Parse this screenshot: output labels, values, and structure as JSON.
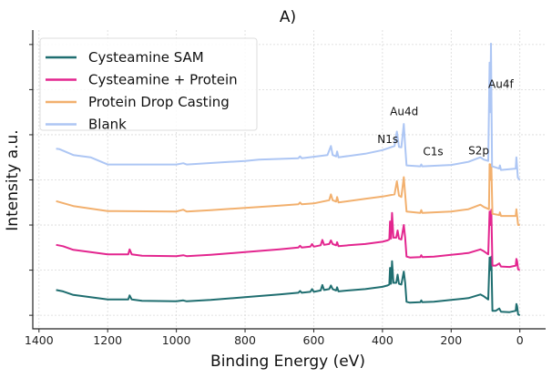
{
  "chart_data": {
    "type": "line",
    "title": "A)",
    "xlabel": "Binding Energy (eV)",
    "ylabel": "Intensity a.u.",
    "xlim": [
      1418,
      -75
    ],
    "ylim": [
      -0.3,
      6.32
    ],
    "x_reversed": true,
    "xticks": [
      1400,
      1200,
      1000,
      800,
      600,
      400,
      200,
      0
    ],
    "yticks": [
      0,
      1,
      2,
      3,
      4,
      5,
      6
    ],
    "yticklabels_shown": false,
    "grid": true,
    "legend_position": "top-left",
    "series": [
      {
        "name": "Cysteamine SAM",
        "color": "#1f6e70",
        "points": [
          [
            1350,
            0.56
          ],
          [
            1330,
            0.53
          ],
          [
            1300,
            0.45
          ],
          [
            1250,
            0.4
          ],
          [
            1200,
            0.35
          ],
          [
            1140,
            0.35
          ],
          [
            1136,
            0.44
          ],
          [
            1130,
            0.35
          ],
          [
            1100,
            0.32
          ],
          [
            1000,
            0.31
          ],
          [
            980,
            0.33
          ],
          [
            970,
            0.31
          ],
          [
            900,
            0.34
          ],
          [
            800,
            0.4
          ],
          [
            700,
            0.46
          ],
          [
            645,
            0.5
          ],
          [
            640,
            0.54
          ],
          [
            635,
            0.5
          ],
          [
            610,
            0.52
          ],
          [
            605,
            0.58
          ],
          [
            600,
            0.52
          ],
          [
            580,
            0.55
          ],
          [
            575,
            0.67
          ],
          [
            570,
            0.56
          ],
          [
            555,
            0.58
          ],
          [
            550,
            0.66
          ],
          [
            545,
            0.58
          ],
          [
            535,
            0.55
          ],
          [
            532,
            0.62
          ],
          [
            528,
            0.53
          ],
          [
            500,
            0.55
          ],
          [
            450,
            0.58
          ],
          [
            400,
            0.63
          ],
          [
            385,
            0.66
          ],
          [
            380,
            0.68
          ],
          [
            378,
            1.05
          ],
          [
            375,
            0.7
          ],
          [
            372,
            1.2
          ],
          [
            368,
            0.72
          ],
          [
            360,
            0.72
          ],
          [
            356,
            0.9
          ],
          [
            352,
            0.7
          ],
          [
            345,
            0.68
          ],
          [
            338,
            0.97
          ],
          [
            334,
            0.72
          ],
          [
            330,
            0.3
          ],
          [
            320,
            0.28
          ],
          [
            290,
            0.29
          ],
          [
            287,
            0.33
          ],
          [
            284,
            0.29
          ],
          [
            250,
            0.3
          ],
          [
            200,
            0.34
          ],
          [
            150,
            0.38
          ],
          [
            115,
            0.46
          ],
          [
            105,
            0.42
          ],
          [
            92,
            0.35
          ],
          [
            88,
            1.28
          ],
          [
            85,
            1.0
          ],
          [
            83,
            1.3
          ],
          [
            80,
            0.1
          ],
          [
            70,
            0.1
          ],
          [
            60,
            0.15
          ],
          [
            55,
            0.08
          ],
          [
            30,
            0.07
          ],
          [
            12,
            0.1
          ],
          [
            10,
            0.25
          ],
          [
            8,
            0.2
          ],
          [
            5,
            0.02
          ],
          [
            0,
            0.0
          ]
        ]
      },
      {
        "name": "Cysteamine + Protein",
        "color": "#e3268f",
        "points": [
          [
            1350,
            1.56
          ],
          [
            1330,
            1.53
          ],
          [
            1300,
            1.45
          ],
          [
            1250,
            1.4
          ],
          [
            1200,
            1.35
          ],
          [
            1140,
            1.35
          ],
          [
            1136,
            1.46
          ],
          [
            1130,
            1.35
          ],
          [
            1100,
            1.32
          ],
          [
            1000,
            1.31
          ],
          [
            980,
            1.33
          ],
          [
            970,
            1.31
          ],
          [
            900,
            1.34
          ],
          [
            800,
            1.4
          ],
          [
            700,
            1.46
          ],
          [
            645,
            1.5
          ],
          [
            640,
            1.54
          ],
          [
            635,
            1.5
          ],
          [
            610,
            1.52
          ],
          [
            605,
            1.58
          ],
          [
            600,
            1.52
          ],
          [
            580,
            1.55
          ],
          [
            575,
            1.67
          ],
          [
            570,
            1.56
          ],
          [
            555,
            1.58
          ],
          [
            550,
            1.66
          ],
          [
            545,
            1.58
          ],
          [
            535,
            1.55
          ],
          [
            532,
            1.62
          ],
          [
            528,
            1.53
          ],
          [
            500,
            1.55
          ],
          [
            450,
            1.58
          ],
          [
            400,
            1.63
          ],
          [
            385,
            1.66
          ],
          [
            380,
            1.68
          ],
          [
            378,
            2.08
          ],
          [
            375,
            1.7
          ],
          [
            372,
            2.27
          ],
          [
            368,
            1.72
          ],
          [
            360,
            1.72
          ],
          [
            356,
            1.88
          ],
          [
            352,
            1.7
          ],
          [
            345,
            1.68
          ],
          [
            338,
            2.0
          ],
          [
            334,
            1.72
          ],
          [
            330,
            1.3
          ],
          [
            320,
            1.28
          ],
          [
            290,
            1.29
          ],
          [
            287,
            1.33
          ],
          [
            284,
            1.29
          ],
          [
            250,
            1.3
          ],
          [
            200,
            1.34
          ],
          [
            150,
            1.38
          ],
          [
            115,
            1.46
          ],
          [
            105,
            1.42
          ],
          [
            92,
            1.35
          ],
          [
            88,
            2.3
          ],
          [
            85,
            2.0
          ],
          [
            83,
            2.34
          ],
          [
            80,
            1.1
          ],
          [
            70,
            1.1
          ],
          [
            60,
            1.15
          ],
          [
            55,
            1.08
          ],
          [
            30,
            1.07
          ],
          [
            12,
            1.1
          ],
          [
            10,
            1.25
          ],
          [
            8,
            1.2
          ],
          [
            5,
            1.02
          ],
          [
            0,
            1.0
          ]
        ]
      },
      {
        "name": "Protein Drop Casting",
        "color": "#f2b06e",
        "points": [
          [
            1350,
            2.53
          ],
          [
            1300,
            2.42
          ],
          [
            1200,
            2.31
          ],
          [
            1000,
            2.3
          ],
          [
            980,
            2.34
          ],
          [
            970,
            2.3
          ],
          [
            900,
            2.33
          ],
          [
            800,
            2.38
          ],
          [
            760,
            2.4
          ],
          [
            700,
            2.43
          ],
          [
            645,
            2.46
          ],
          [
            640,
            2.5
          ],
          [
            635,
            2.46
          ],
          [
            600,
            2.48
          ],
          [
            555,
            2.55
          ],
          [
            550,
            2.68
          ],
          [
            545,
            2.55
          ],
          [
            535,
            2.52
          ],
          [
            532,
            2.62
          ],
          [
            528,
            2.5
          ],
          [
            450,
            2.58
          ],
          [
            400,
            2.63
          ],
          [
            365,
            2.68
          ],
          [
            358,
            2.97
          ],
          [
            352,
            2.65
          ],
          [
            345,
            2.62
          ],
          [
            338,
            3.06
          ],
          [
            334,
            2.68
          ],
          [
            330,
            2.3
          ],
          [
            290,
            2.27
          ],
          [
            287,
            2.33
          ],
          [
            284,
            2.27
          ],
          [
            200,
            2.3
          ],
          [
            150,
            2.35
          ],
          [
            115,
            2.45
          ],
          [
            105,
            2.4
          ],
          [
            90,
            2.35
          ],
          [
            88,
            3.35
          ],
          [
            85,
            3.0
          ],
          [
            83,
            3.35
          ],
          [
            80,
            2.25
          ],
          [
            60,
            2.22
          ],
          [
            58,
            2.28
          ],
          [
            55,
            2.2
          ],
          [
            12,
            2.2
          ],
          [
            10,
            2.35
          ],
          [
            5,
            2.0
          ],
          [
            0,
            2.0
          ]
        ]
      },
      {
        "name": "Blank",
        "color": "#adc6f4",
        "points": [
          [
            1350,
            3.69
          ],
          [
            1340,
            3.68
          ],
          [
            1300,
            3.55
          ],
          [
            1250,
            3.5
          ],
          [
            1200,
            3.34
          ],
          [
            1000,
            3.34
          ],
          [
            980,
            3.37
          ],
          [
            970,
            3.34
          ],
          [
            800,
            3.42
          ],
          [
            760,
            3.45
          ],
          [
            645,
            3.48
          ],
          [
            640,
            3.52
          ],
          [
            635,
            3.48
          ],
          [
            560,
            3.55
          ],
          [
            550,
            3.75
          ],
          [
            545,
            3.55
          ],
          [
            535,
            3.52
          ],
          [
            532,
            3.63
          ],
          [
            528,
            3.5
          ],
          [
            450,
            3.58
          ],
          [
            400,
            3.66
          ],
          [
            365,
            3.75
          ],
          [
            358,
            4.07
          ],
          [
            352,
            3.73
          ],
          [
            345,
            3.72
          ],
          [
            338,
            4.24
          ],
          [
            334,
            3.75
          ],
          [
            330,
            3.32
          ],
          [
            290,
            3.3
          ],
          [
            287,
            3.34
          ],
          [
            284,
            3.3
          ],
          [
            200,
            3.33
          ],
          [
            150,
            3.4
          ],
          [
            115,
            3.5
          ],
          [
            105,
            3.45
          ],
          [
            92,
            3.42
          ],
          [
            88,
            5.6
          ],
          [
            86,
            4.5
          ],
          [
            84,
            6.02
          ],
          [
            81,
            3.3
          ],
          [
            60,
            3.25
          ],
          [
            58,
            3.32
          ],
          [
            55,
            3.22
          ],
          [
            12,
            3.25
          ],
          [
            10,
            3.5
          ],
          [
            6,
            3.05
          ],
          [
            0,
            3.0
          ]
        ]
      }
    ],
    "annotations": [
      {
        "text": "N1s",
        "x": 415,
        "y": 3.82
      },
      {
        "text": "Au4d",
        "x": 378,
        "y": 4.43
      },
      {
        "text": "C1s",
        "x": 282,
        "y": 3.54
      },
      {
        "text": "S2p",
        "x": 150,
        "y": 3.57
      },
      {
        "text": "Au4f",
        "x": 92,
        "y": 5.04
      }
    ]
  }
}
